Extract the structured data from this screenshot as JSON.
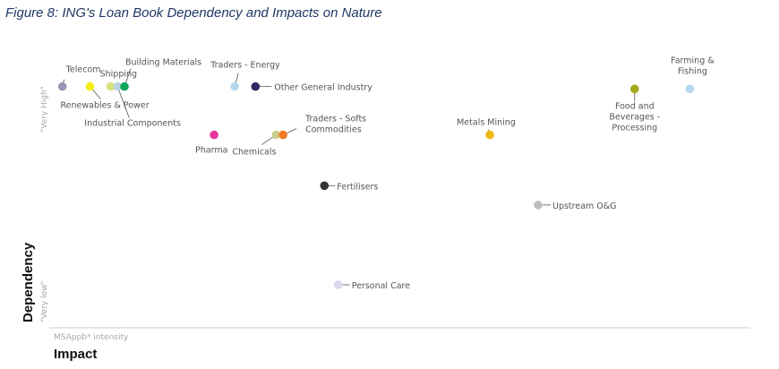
{
  "figure_title": "Figure 8: ING's Loan Book Dependency and Impacts on Nature",
  "chart_data": {
    "type": "scatter",
    "title": "Figure 8: ING's Loan Book Dependency and Impacts on Nature",
    "xlabel": "Impact",
    "xlabel_sub": "MSAppb* intensity",
    "ylabel": "Dependency",
    "y_top_label": "\"Very High\"",
    "y_bottom_label": "\"Very low\"",
    "xlim": [
      0,
      100
    ],
    "ylim": [
      0,
      100
    ],
    "grid": false,
    "points": [
      {
        "label": "Telecom",
        "x": 1,
        "y": 92,
        "color": "#9b94b4"
      },
      {
        "label": "Renewables & Power",
        "x": 5,
        "y": 92,
        "color": "#f2ee16"
      },
      {
        "label": "Shipping",
        "x": 8,
        "y": 92,
        "color": "#d9e07a"
      },
      {
        "label": "Industrial Components",
        "x": 9,
        "y": 92,
        "color": "#b9d3e3"
      },
      {
        "label": "Building Materials",
        "x": 10,
        "y": 92,
        "color": "#10a85a"
      },
      {
        "label": "Traders - Energy",
        "x": 26,
        "y": 92,
        "color": "#b9d7ec"
      },
      {
        "label": "Other General Industry",
        "x": 29,
        "y": 92,
        "color": "#2e2a63"
      },
      {
        "label": "Pharma",
        "x": 23,
        "y": 72,
        "color": "#e8359c"
      },
      {
        "label": "Chemicals",
        "x": 32,
        "y": 72,
        "color": "#c8cf8a"
      },
      {
        "label": "Traders - Softs Commodities",
        "x": 33,
        "y": 72,
        "color": "#ef7a1f"
      },
      {
        "label": "Metals Mining",
        "x": 63,
        "y": 72,
        "color": "#efb810"
      },
      {
        "label": "Food and Beverages - Processing",
        "x": 84,
        "y": 91,
        "color": "#a6a91d"
      },
      {
        "label": "Farming & Fishing",
        "x": 92,
        "y": 91,
        "color": "#b9d7ec"
      },
      {
        "label": "Fertilisers",
        "x": 39,
        "y": 51,
        "color": "#333333"
      },
      {
        "label": "Upstream O&G",
        "x": 70,
        "y": 43,
        "color": "#bdbdbd"
      },
      {
        "label": "Personal Care",
        "x": 41,
        "y": 10,
        "color": "#dad6ec"
      }
    ]
  }
}
